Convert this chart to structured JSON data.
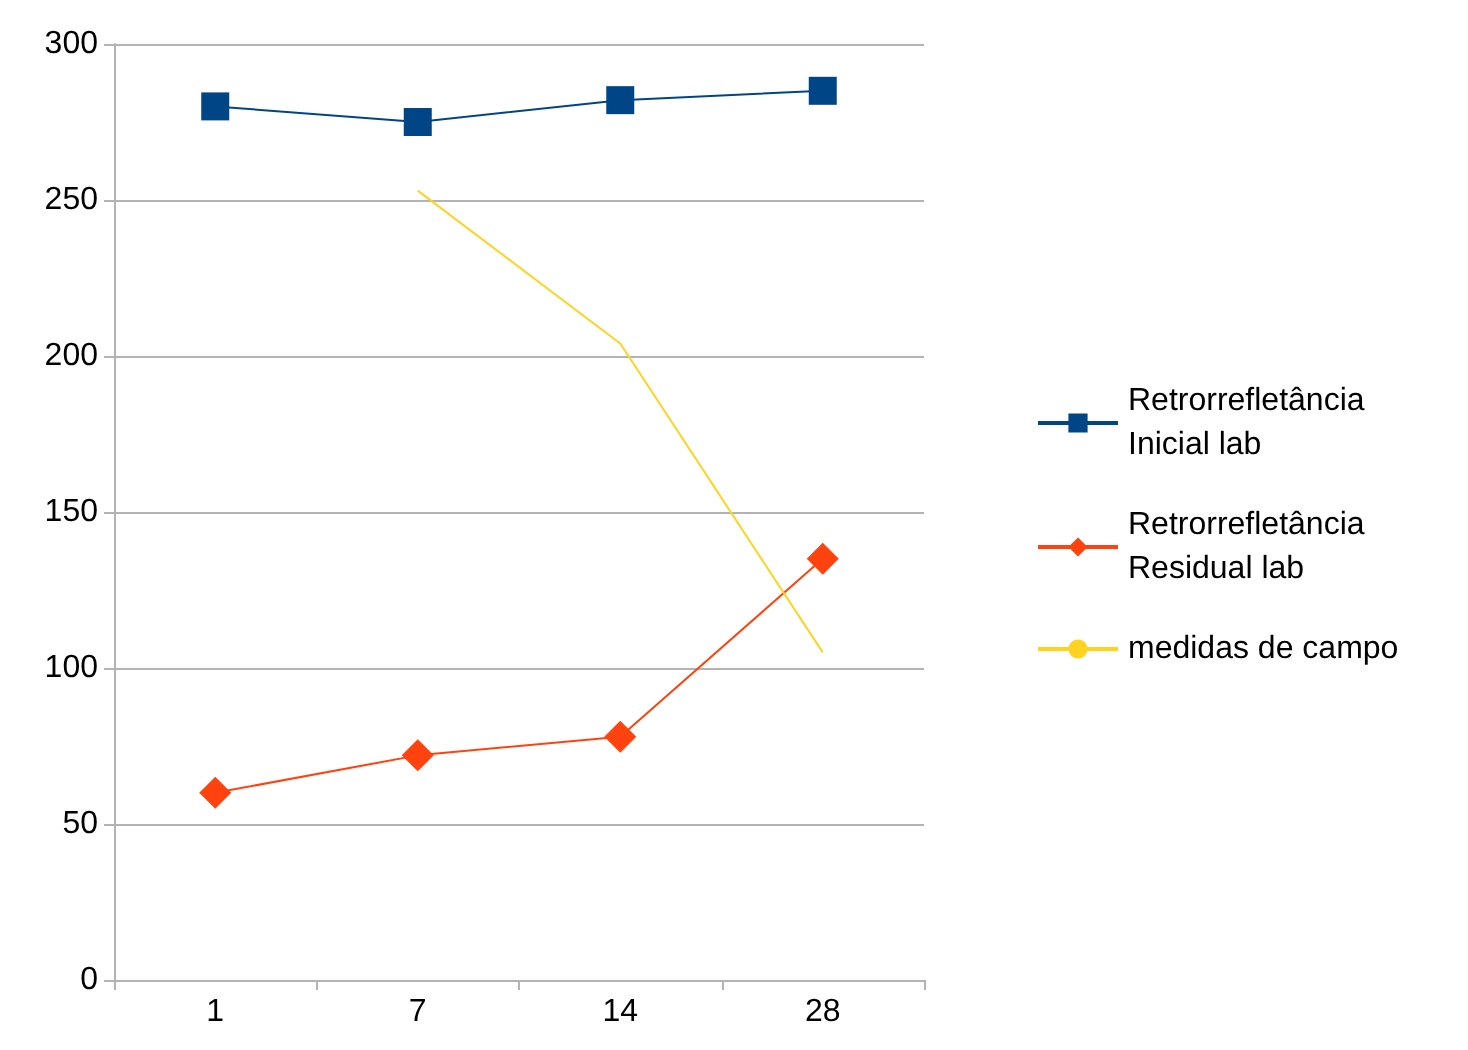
{
  "chart_data": {
    "type": "line",
    "categories": [
      "1",
      "7",
      "14",
      "28"
    ],
    "series": [
      {
        "name": "Retrorrefletância Inicial lab",
        "color": "#004586",
        "marker": "square",
        "values": [
          280,
          275,
          282,
          285
        ]
      },
      {
        "name": "Retrorrefletância Residual lab",
        "color": "#ff420e",
        "marker": "diamond",
        "values": [
          60,
          72,
          78,
          135
        ]
      },
      {
        "name": "medidas de campo",
        "color": "#ffd320",
        "marker": "none",
        "values": [
          null,
          253,
          204,
          105
        ]
      }
    ],
    "ylim": [
      0,
      300
    ],
    "yticks": [
      0,
      50,
      100,
      150,
      200,
      250,
      300
    ],
    "grid": "y",
    "legend": "right"
  }
}
